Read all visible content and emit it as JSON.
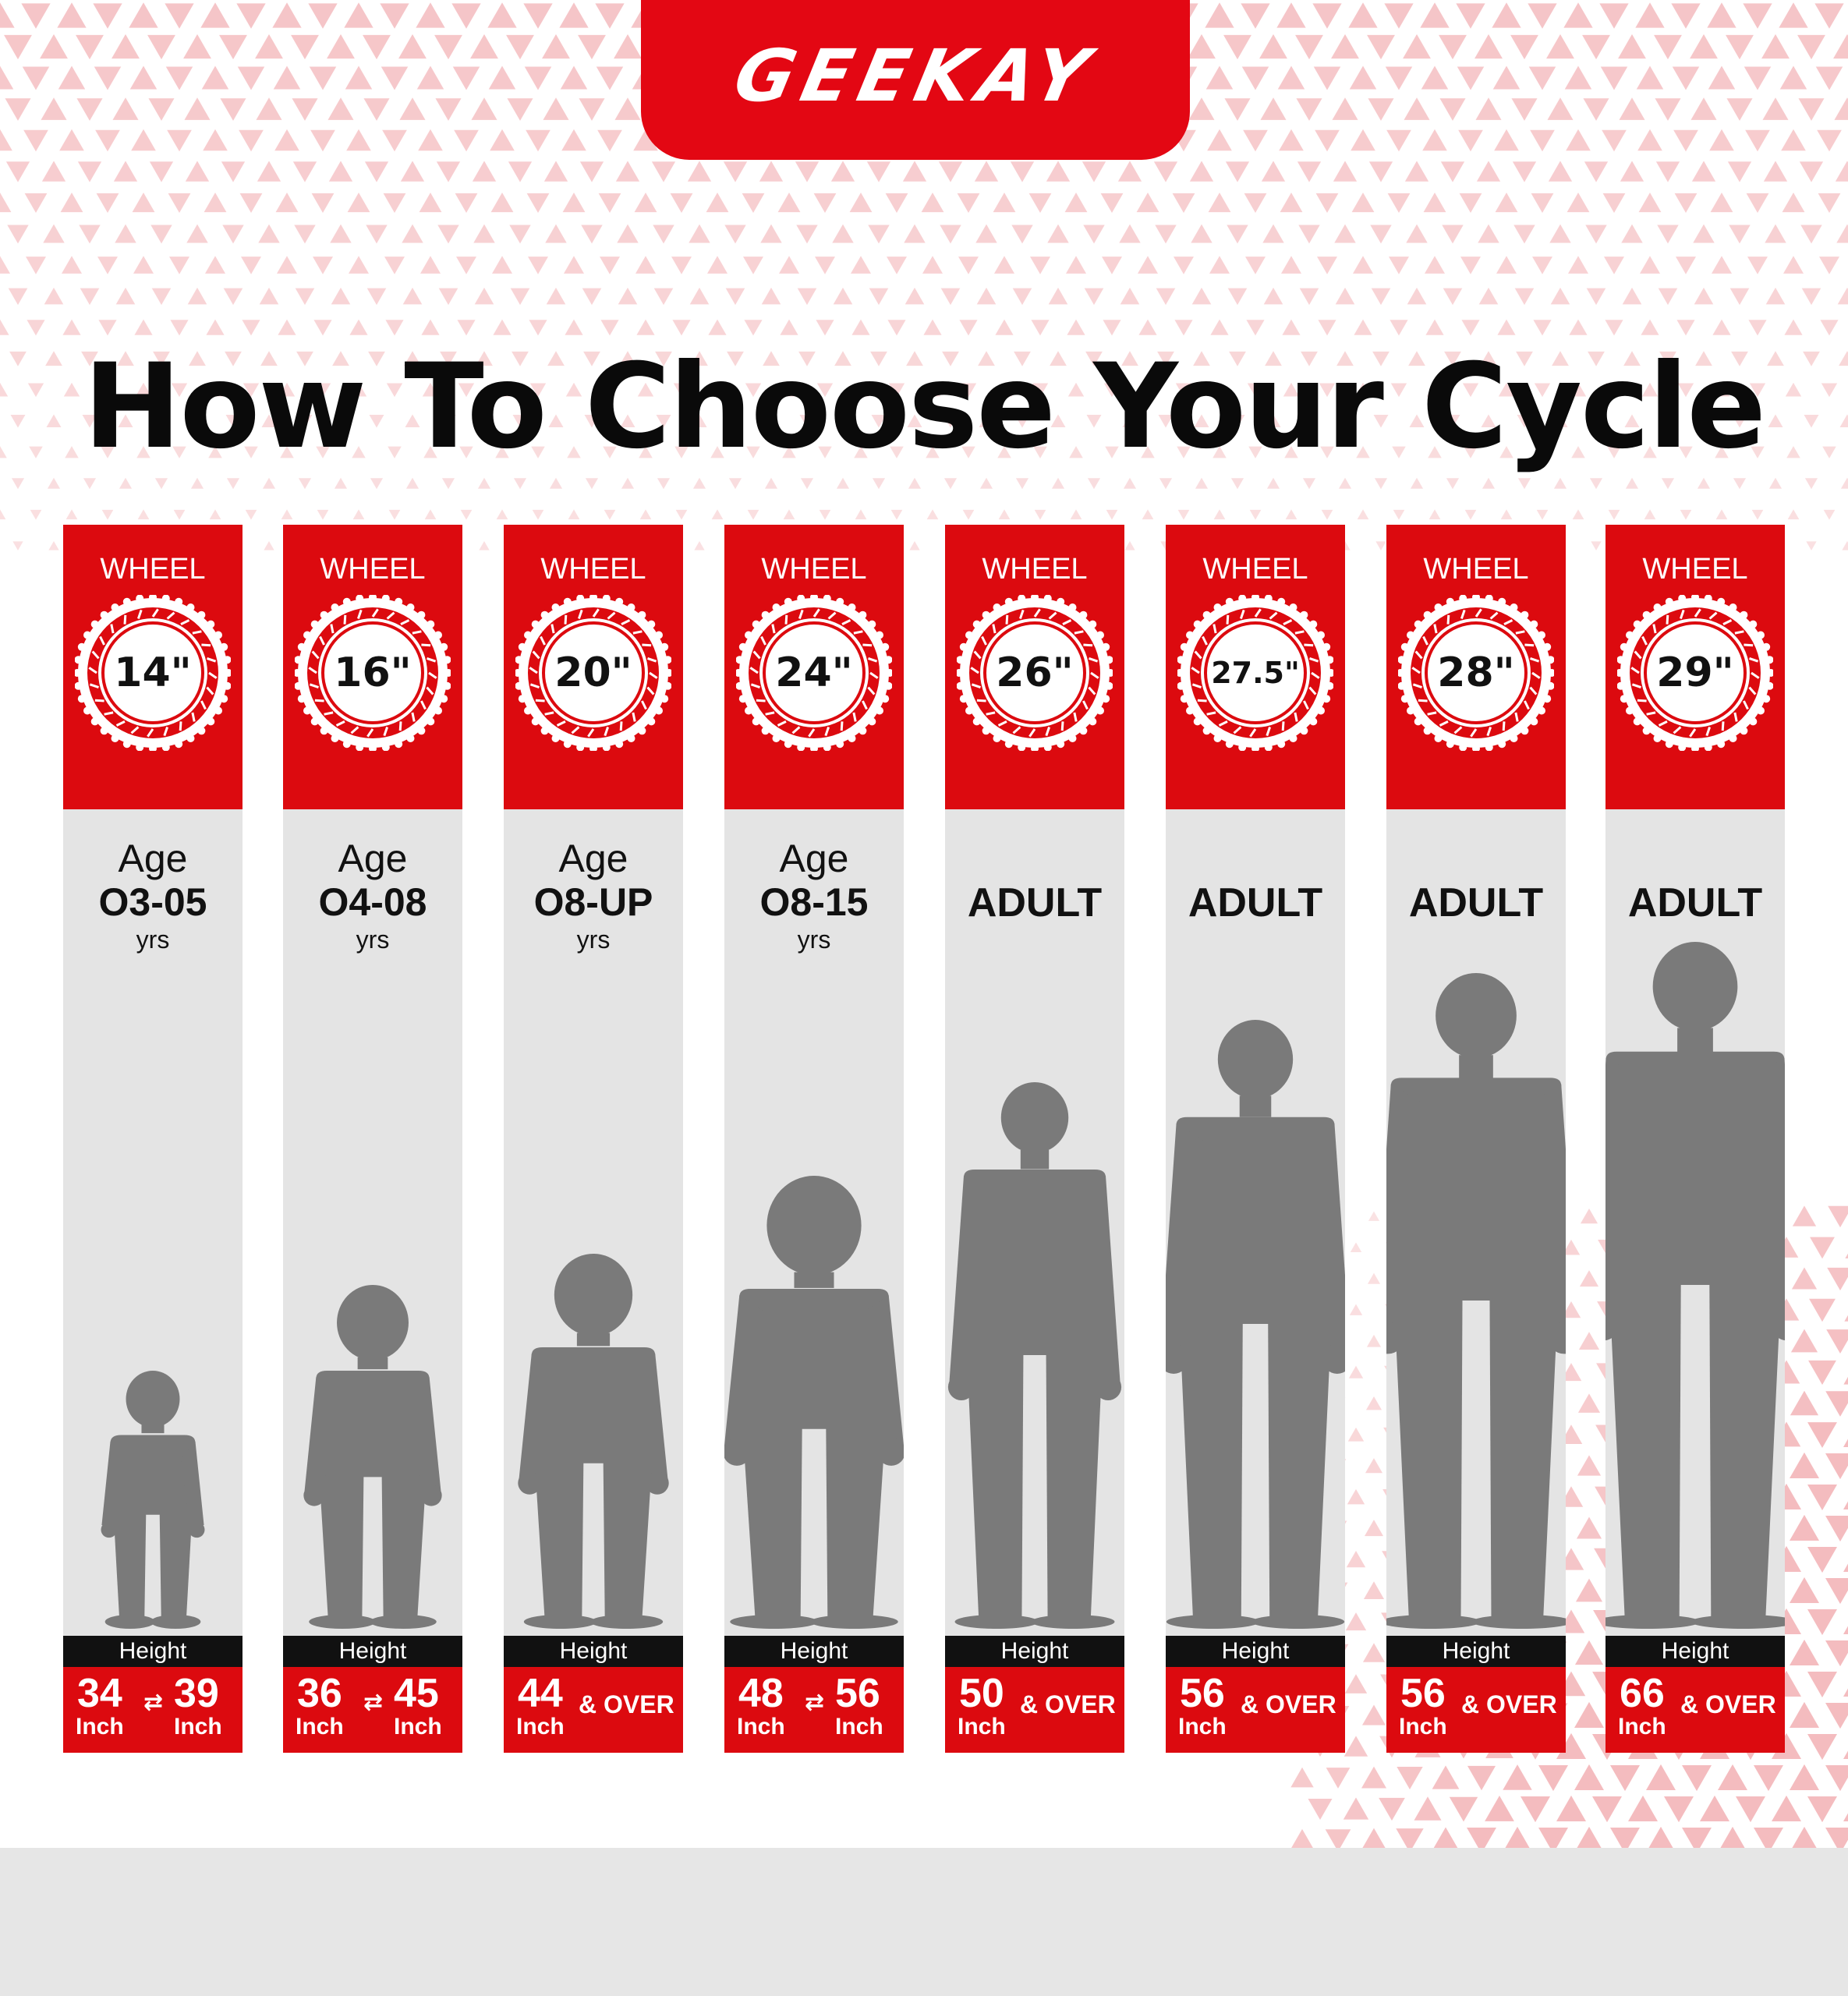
{
  "brand": {
    "name": "GEEKAY",
    "color": "#e30713"
  },
  "title": "How To Choose Your Cycle",
  "wheel_label": "WHEEL",
  "height_label": "Height",
  "range_symbol": "⇄",
  "colors": {
    "accent_red": "#dc0a0f",
    "silhouette": "#7a7a7a",
    "column_bg": "#e4e4e4",
    "footer_bg": "#e6e6e6"
  },
  "columns": [
    {
      "wheel_size": "14\"",
      "age_word": "Age",
      "age_range": "O3-05",
      "age_unit": "yrs",
      "adult": "",
      "height_min": "34",
      "height_min_unit": "Inch",
      "height_max": "39",
      "height_max_unit": "Inch",
      "height_over": "",
      "figure_height": 0.33
    },
    {
      "wheel_size": "16\"",
      "age_word": "Age",
      "age_range": "O4-08",
      "age_unit": "yrs",
      "adult": "",
      "height_min": "36",
      "height_min_unit": "Inch",
      "height_max": "45",
      "height_max_unit": "Inch",
      "height_over": "",
      "figure_height": 0.44
    },
    {
      "wheel_size": "20\"",
      "age_word": "Age",
      "age_range": "O8-UP",
      "age_unit": "yrs",
      "adult": "",
      "height_min": "44",
      "height_min_unit": "Inch",
      "height_max": "",
      "height_max_unit": "",
      "height_over": "& OVER",
      "figure_height": 0.48
    },
    {
      "wheel_size": "24\"",
      "age_word": "Age",
      "age_range": "O8-15",
      "age_unit": "yrs",
      "adult": "",
      "height_min": "48",
      "height_min_unit": "Inch",
      "height_max": "56",
      "height_max_unit": "Inch",
      "height_over": "",
      "figure_height": 0.58
    },
    {
      "wheel_size": "26\"",
      "age_word": "",
      "age_range": "",
      "age_unit": "",
      "adult": "ADULT",
      "height_min": "50",
      "height_min_unit": "Inch",
      "height_max": "",
      "height_max_unit": "",
      "height_over": "& OVER",
      "figure_height": 0.7
    },
    {
      "wheel_size": "27.5\"",
      "age_word": "",
      "age_range": "",
      "age_unit": "",
      "adult": "ADULT",
      "height_min": "56",
      "height_min_unit": "Inch",
      "height_max": "",
      "height_max_unit": "",
      "height_over": "& OVER",
      "figure_height": 0.78
    },
    {
      "wheel_size": "28\"",
      "age_word": "",
      "age_range": "",
      "age_unit": "",
      "adult": "ADULT",
      "height_min": "56",
      "height_min_unit": "Inch",
      "height_max": "",
      "height_max_unit": "",
      "height_over": "& OVER",
      "figure_height": 0.84
    },
    {
      "wheel_size": "29\"",
      "age_word": "",
      "age_range": "",
      "age_unit": "",
      "adult": "ADULT",
      "height_min": "66",
      "height_min_unit": "Inch",
      "height_max": "",
      "height_max_unit": "",
      "height_over": "& OVER",
      "figure_height": 0.88
    }
  ]
}
